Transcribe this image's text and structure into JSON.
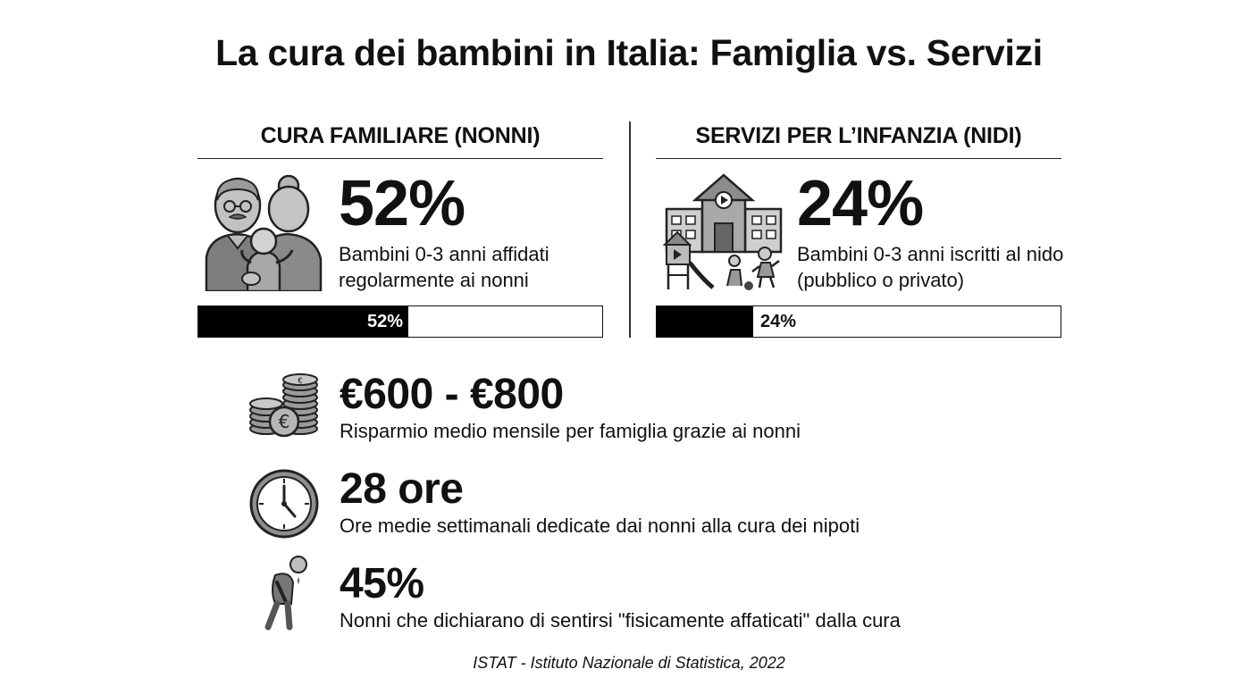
{
  "title": "La cura dei bambini in Italia: Famiglia vs. Servizi",
  "left_panel": {
    "heading": "CURA FAMILIARE (NONNI)",
    "value": "52%",
    "description": "Bambini 0-3 anni affidati regolarmente ai nonni",
    "bar_label": "52%",
    "bar_fraction": 0.52,
    "icon": "grandparents-with-baby-icon"
  },
  "right_panel": {
    "heading": "SERVIZI PER L’INFANZIA (NIDI)",
    "value": "24%",
    "description": "Bambini 0-3 anni iscritti al nido (pubblico o privato)",
    "bar_label": "24%",
    "bar_fraction": 0.24,
    "icon": "nursery-school-icon"
  },
  "stats": [
    {
      "value": "€600 - €800",
      "label": "Risparmio medio mensile per famiglia grazie ai nonni",
      "icon": "euro-coins-icon"
    },
    {
      "value": "28 ore",
      "label": "Ore medie settimanali dedicate dai nonni alla cura dei nipoti",
      "icon": "clock-icon"
    },
    {
      "value": "45%",
      "label": "Nonni che dichiarano di sentirsi \"fisicamente affaticati\" dalla cura",
      "icon": "tired-elderly-icon"
    }
  ],
  "source": "ISTAT - Istituto Nazionale di Statistica, 2022",
  "colors": {
    "bar_fill": "#000000",
    "icon_fill": "#888888"
  }
}
